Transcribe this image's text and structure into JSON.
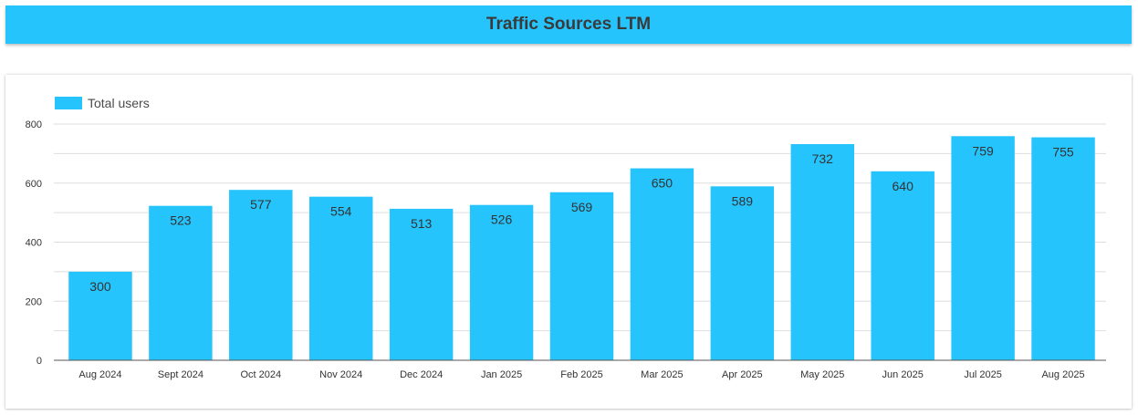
{
  "header": {
    "title": "Traffic Sources LTM"
  },
  "colors": {
    "bar": "#25c4fd",
    "header": "#25c4fd",
    "gridline": "#dddddd",
    "axis": "#555555"
  },
  "chart_data": {
    "type": "bar",
    "title": "",
    "xlabel": "",
    "ylabel": "",
    "legend": {
      "position": "top-left",
      "entries": [
        "Total users"
      ]
    },
    "grid": true,
    "ylim": [
      0,
      800
    ],
    "yticks": [
      "0",
      "200",
      "400",
      "600",
      "800"
    ],
    "categories": [
      "Aug 2024",
      "Sept 2024",
      "Oct 2024",
      "Nov 2024",
      "Dec 2024",
      "Jan 2025",
      "Feb 2025",
      "Mar 2025",
      "Apr 2025",
      "May 2025",
      "Jun 2025",
      "Jul 2025",
      "Aug 2025"
    ],
    "series": [
      {
        "name": "Total users",
        "values": [
          300,
          523,
          577,
          554,
          513,
          526,
          569,
          650,
          589,
          732,
          640,
          759,
          755
        ]
      }
    ]
  }
}
